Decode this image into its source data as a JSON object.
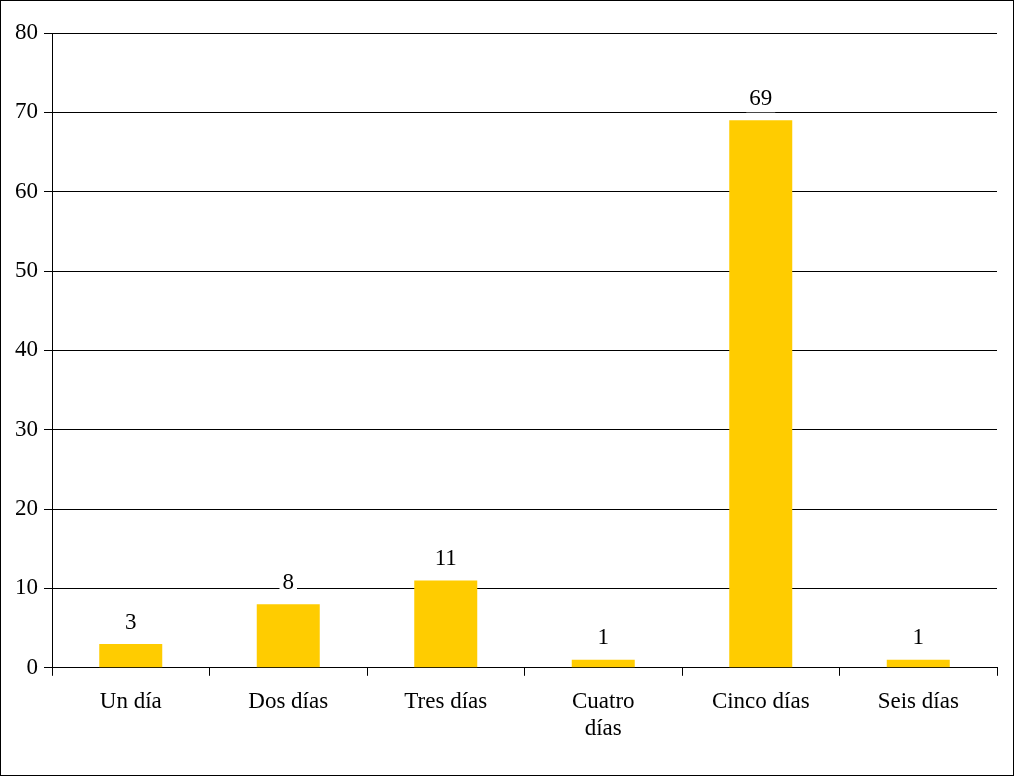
{
  "chart_data": {
    "type": "bar",
    "categories": [
      "Un día",
      "Dos días",
      "Tres días",
      "Cuatro días",
      "Cinco días",
      "Seis días"
    ],
    "values": [
      3,
      8,
      11,
      1,
      69,
      1
    ],
    "color": "#ffcc00",
    "ylim": [
      0,
      80
    ],
    "yticks": [
      0,
      10,
      20,
      30,
      40,
      50,
      60,
      70,
      80
    ],
    "grid": "y",
    "data_labels": true,
    "legend": false
  }
}
